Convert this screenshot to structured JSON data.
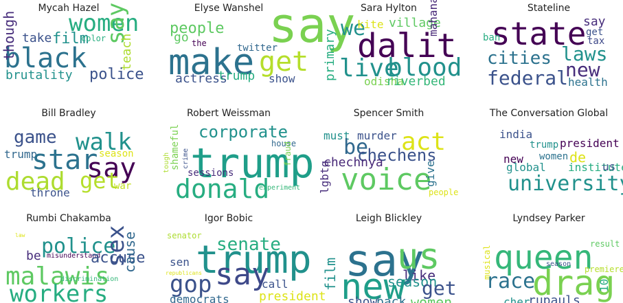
{
  "panels": [
    {
      "title": "Mycah Hazel",
      "words": [
        {
          "text": "women",
          "color": "#27ad81"
        },
        {
          "text": "black",
          "color": "#2c728e"
        },
        {
          "text": "say",
          "color": "#5ec962"
        },
        {
          "text": "though",
          "color": "#472d7b"
        },
        {
          "text": "take",
          "color": "#3b528b"
        },
        {
          "text": "film",
          "color": "#21918c"
        },
        {
          "text": "color",
          "color": "#28ae80"
        },
        {
          "text": "teach",
          "color": "#addc30"
        },
        {
          "text": "brutality",
          "color": "#21918c"
        },
        {
          "text": "police",
          "color": "#3b528b"
        }
      ]
    },
    {
      "title": "Elyse Wanshel",
      "words": [
        {
          "text": "say",
          "color": "#7ad151"
        },
        {
          "text": "people",
          "color": "#5ec962"
        },
        {
          "text": "go",
          "color": "#5ec962"
        },
        {
          "text": "make",
          "color": "#2c728e"
        },
        {
          "text": "get",
          "color": "#b5de2b"
        },
        {
          "text": "the",
          "color": "#440154"
        },
        {
          "text": "twitter",
          "color": "#31688e"
        },
        {
          "text": "actress",
          "color": "#3b528b"
        },
        {
          "text": "trump",
          "color": "#27ad81"
        },
        {
          "text": "show",
          "color": "#3b528b"
        }
      ]
    },
    {
      "title": "Sara Hylton",
      "words": [
        {
          "text": "we",
          "color": "#21918c"
        },
        {
          "text": "kite",
          "color": "#dde318"
        },
        {
          "text": "village",
          "color": "#5ec962"
        },
        {
          "text": "dalit",
          "color": "#440154"
        },
        {
          "text": "mahanadi",
          "color": "#482878"
        },
        {
          "text": "primary",
          "color": "#27ad81"
        },
        {
          "text": "live",
          "color": "#21918c"
        },
        {
          "text": "blood",
          "color": "#21918c"
        },
        {
          "text": "odisha",
          "color": "#7ad151"
        },
        {
          "text": "riverbed",
          "color": "#35b779"
        }
      ]
    },
    {
      "title": "Stateline",
      "words": [
        {
          "text": "state",
          "color": "#440154"
        },
        {
          "text": "say",
          "color": "#472d7b"
        },
        {
          "text": "get",
          "color": "#3b528b"
        },
        {
          "text": "tax",
          "color": "#3e4989"
        },
        {
          "text": "ban",
          "color": "#27ad81"
        },
        {
          "text": "cities",
          "color": "#2c728e"
        },
        {
          "text": "laws",
          "color": "#21918c"
        },
        {
          "text": "federal",
          "color": "#3b528b"
        },
        {
          "text": "new",
          "color": "#472d7b"
        },
        {
          "text": "health",
          "color": "#2c728e"
        }
      ]
    },
    {
      "title": "Bill Bradley",
      "words": [
        {
          "text": "game",
          "color": "#3b528b"
        },
        {
          "text": "walk",
          "color": "#21918c"
        },
        {
          "text": "trump",
          "color": "#31688e"
        },
        {
          "text": "star",
          "color": "#2c728e"
        },
        {
          "text": "season",
          "color": "#dde318"
        },
        {
          "text": "say",
          "color": "#440154"
        },
        {
          "text": "dead",
          "color": "#addc30"
        },
        {
          "text": "get",
          "color": "#b5de2b"
        },
        {
          "text": "war",
          "color": "#c2df23"
        },
        {
          "text": "throne",
          "color": "#3b528b"
        }
      ]
    },
    {
      "title": "Robert Weissman",
      "words": [
        {
          "text": "corporate",
          "color": "#21918c"
        },
        {
          "text": "house",
          "color": "#31688e"
        },
        {
          "text": "trump",
          "color": "#1f9e89"
        },
        {
          "text": "tough",
          "color": "#addc30"
        },
        {
          "text": "shameful",
          "color": "#7ad151"
        },
        {
          "text": "crime",
          "color": "#3b528b"
        },
        {
          "text": "fraud",
          "color": "#7ad151"
        },
        {
          "text": "sessions",
          "color": "#472d7b"
        },
        {
          "text": "donald",
          "color": "#27ad81"
        },
        {
          "text": "experiment",
          "color": "#35b779"
        }
      ]
    },
    {
      "title": "Spencer Smith",
      "words": [
        {
          "text": "must",
          "color": "#21918c"
        },
        {
          "text": "murder",
          "color": "#3b528b"
        },
        {
          "text": "act",
          "color": "#dde318"
        },
        {
          "text": "be",
          "color": "#31688e"
        },
        {
          "text": "chechens",
          "color": "#3b528b"
        },
        {
          "text": "chechnya",
          "color": "#482878"
        },
        {
          "text": "voice",
          "color": "#5ec962"
        },
        {
          "text": "give",
          "color": "#2c728e"
        },
        {
          "text": "lgbtq",
          "color": "#472d7b"
        },
        {
          "text": "people",
          "color": "#dde318"
        }
      ]
    },
    {
      "title": "The Conversation Global",
      "words": [
        {
          "text": "india",
          "color": "#3b528b"
        },
        {
          "text": "trump",
          "color": "#21918c"
        },
        {
          "text": "president",
          "color": "#440154"
        },
        {
          "text": "new",
          "color": "#440154"
        },
        {
          "text": "women",
          "color": "#2c728e"
        },
        {
          "text": "de",
          "color": "#dde318"
        },
        {
          "text": "global",
          "color": "#21918c"
        },
        {
          "text": "institute",
          "color": "#27ad81"
        },
        {
          "text": "us",
          "color": "#3b528b"
        },
        {
          "text": "university",
          "color": "#21918c"
        }
      ]
    },
    {
      "title": "Rumbi Chakamba",
      "words": [
        {
          "text": "law",
          "color": "#dde318"
        },
        {
          "text": "police",
          "color": "#21918c"
        },
        {
          "text": "be",
          "color": "#472d7b"
        },
        {
          "text": "misunderstand",
          "color": "#440154"
        },
        {
          "text": "accuse",
          "color": "#3b528b"
        },
        {
          "text": "malawis",
          "color": "#5ec962"
        },
        {
          "text": "sex",
          "color": "#3b528b"
        },
        {
          "text": "cause",
          "color": "#31688e"
        },
        {
          "text": "discrimination",
          "color": "#35b779"
        },
        {
          "text": "workers",
          "color": "#27ad81"
        }
      ]
    },
    {
      "title": "Igor Bobic",
      "words": [
        {
          "text": "senator",
          "color": "#addc30"
        },
        {
          "text": "senate",
          "color": "#27ad81"
        },
        {
          "text": "trump",
          "color": "#21918c"
        },
        {
          "text": "sen",
          "color": "#3b528b"
        },
        {
          "text": "republicans",
          "color": "#dde318"
        },
        {
          "text": "gop",
          "color": "#3b528b"
        },
        {
          "text": "say",
          "color": "#3e4989"
        },
        {
          "text": "call",
          "color": "#3b528b"
        },
        {
          "text": "democrats",
          "color": "#31688e"
        },
        {
          "text": "president",
          "color": "#dde318"
        }
      ]
    },
    {
      "title": "Leigh Blickley",
      "words": [
        {
          "text": "film",
          "color": "#21918c"
        },
        {
          "text": "say",
          "color": "#2c728e"
        },
        {
          "text": "us",
          "color": "#5ec962"
        },
        {
          "text": "new",
          "color": "#1f9e89"
        },
        {
          "text": "like",
          "color": "#472d7b"
        },
        {
          "text": "season",
          "color": "#21918c"
        },
        {
          "text": "get",
          "color": "#3b528b"
        },
        {
          "text": "show",
          "color": "#3b528b"
        },
        {
          "text": "back",
          "color": "#2c728e"
        },
        {
          "text": "women",
          "color": "#5ec962"
        }
      ]
    },
    {
      "title": "Lyndsey Parker",
      "words": [
        {
          "text": "musical",
          "color": "#dde318"
        },
        {
          "text": "queen",
          "color": "#35b779"
        },
        {
          "text": "result",
          "color": "#5ec962"
        },
        {
          "text": "race",
          "color": "#2c728e"
        },
        {
          "text": "drag",
          "color": "#7ad151"
        },
        {
          "text": "season",
          "color": "#3b528b"
        },
        {
          "text": "premiere",
          "color": "#b5de2b"
        },
        {
          "text": "10",
          "color": "#27ad81"
        },
        {
          "text": "cher",
          "color": "#21918c"
        },
        {
          "text": "rupauls",
          "color": "#3b528b"
        }
      ]
    }
  ]
}
